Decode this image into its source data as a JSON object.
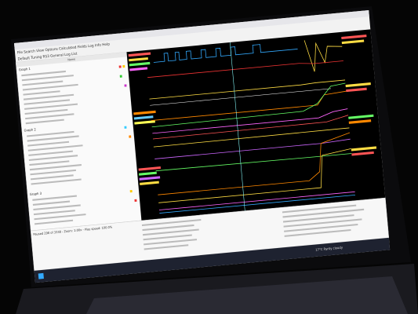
{
  "window": {
    "menu": "File Search View Options Calculated Fields Log Info Help",
    "toolbar": "Default Tuning RS3 General Log List",
    "column_header": "Name"
  },
  "sidebar": {
    "groups": [
      "Graph 1",
      "Graph 2",
      "Graph 3"
    ]
  },
  "status": {
    "playback": "Paused 298 of 3338 - Zoom: 1:00x - Play speed: 100.0%"
  },
  "taskbar": {
    "weather": "17°C Partly cloudy"
  }
}
